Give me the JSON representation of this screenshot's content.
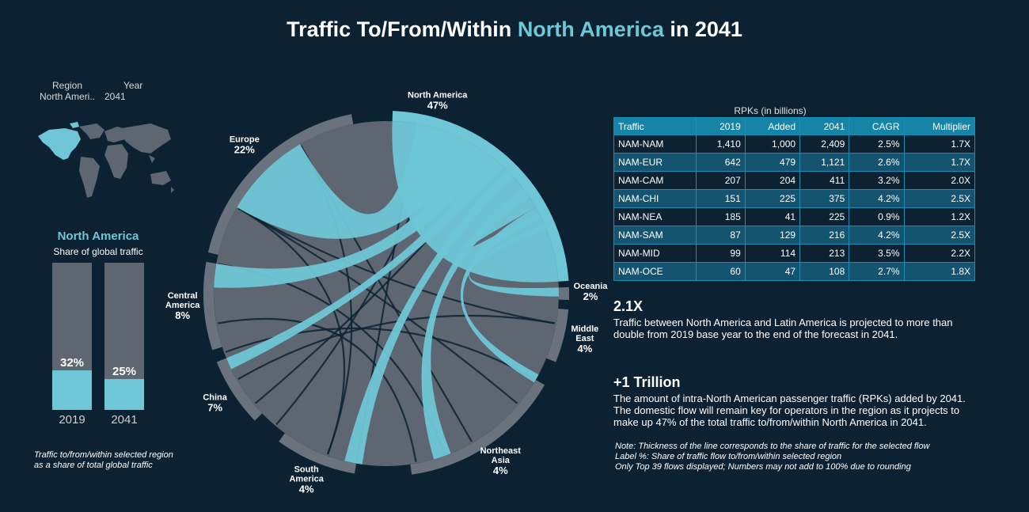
{
  "title": {
    "prefix": "Traffic To/From/Within ",
    "highlight": "North America",
    "suffix": " in 2041"
  },
  "filters": {
    "region_label": "Region",
    "year_label": "Year",
    "region_value": "North Ameri..",
    "year_value": "2041"
  },
  "colors": {
    "background": "#0c2233",
    "accent": "#6ec6d6",
    "grey": "#5d6671",
    "table_header": "#1684a6",
    "row_alt": "#145470"
  },
  "share_panel": {
    "title": "North America",
    "subtitle": "Share of global traffic",
    "note_line1": "Traffic to/from/within selected region",
    "note_line2": "as a share of total global traffic"
  },
  "map_icon": "world-map-icon",
  "chart_data": [
    {
      "type": "bar",
      "title": "North America",
      "subtitle": "Share of global traffic",
      "categories": [
        "2019",
        "2041"
      ],
      "values": [
        32,
        25
      ],
      "value_labels": [
        "32%",
        "25%"
      ],
      "ylim": [
        0,
        100
      ],
      "unit": "%"
    },
    {
      "type": "chord",
      "segments": [
        {
          "name_lines": [
            "North America"
          ],
          "pct": "47%",
          "value": 47,
          "highlight": true
        },
        {
          "name_lines": [
            "Oceania"
          ],
          "pct": "2%",
          "value": 2
        },
        {
          "name_lines": [
            "Middle",
            "East"
          ],
          "pct": "4%",
          "value": 4
        },
        {
          "name_lines": [
            "Northeast",
            "Asia"
          ],
          "pct": "4%",
          "value": 4
        },
        {
          "name_lines": [
            "South",
            "America"
          ],
          "pct": "4%",
          "value": 4
        },
        {
          "name_lines": [
            "China"
          ],
          "pct": "7%",
          "value": 7
        },
        {
          "name_lines": [
            "Central",
            "America"
          ],
          "pct": "8%",
          "value": 8
        },
        {
          "name_lines": [
            "Europe"
          ],
          "pct": "22%",
          "value": 22
        }
      ]
    },
    {
      "type": "table",
      "caption": "RPKs (in billions)",
      "columns": [
        "Traffic",
        "2019",
        "Added",
        "2041",
        "CAGR",
        "Multiplier"
      ],
      "rows": [
        [
          "NAM-NAM",
          "1,410",
          "1,000",
          "2,409",
          "2.5%",
          "1.7X"
        ],
        [
          "NAM-EUR",
          "642",
          "479",
          "1,121",
          "2.6%",
          "1.7X"
        ],
        [
          "NAM-CAM",
          "207",
          "204",
          "411",
          "3.2%",
          "2.0X"
        ],
        [
          "NAM-CHI",
          "151",
          "225",
          "375",
          "4.2%",
          "2.5X"
        ],
        [
          "NAM-NEA",
          "185",
          "41",
          "225",
          "0.9%",
          "1.2X"
        ],
        [
          "NAM-SAM",
          "87",
          "129",
          "216",
          "4.2%",
          "2.5X"
        ],
        [
          "NAM-MID",
          "99",
          "114",
          "213",
          "3.5%",
          "2.2X"
        ],
        [
          "NAM-OCE",
          "60",
          "47",
          "108",
          "2.7%",
          "1.8X"
        ]
      ]
    }
  ],
  "insights": [
    {
      "headline": "2.1X",
      "text": "Traffic between North America and Latin America is projected to more than double from 2019 base year to the end of the forecast in 2041."
    },
    {
      "headline": "+1 Trillion",
      "text": "The amount of intra-North American passenger traffic (RPKs) added by 2041. The domestic flow will remain key for operators in the region as it projects to make up 47% of the total traffic to/from/within North America in 2041."
    }
  ],
  "notes": [
    "Note: Thickness of the line corresponds to the share of traffic for the selected flow",
    "Label %: Share of traffic flow to/from/within selected region",
    "Only Top 39 flows displayed; Numbers may not add to 100% due to rounding"
  ]
}
